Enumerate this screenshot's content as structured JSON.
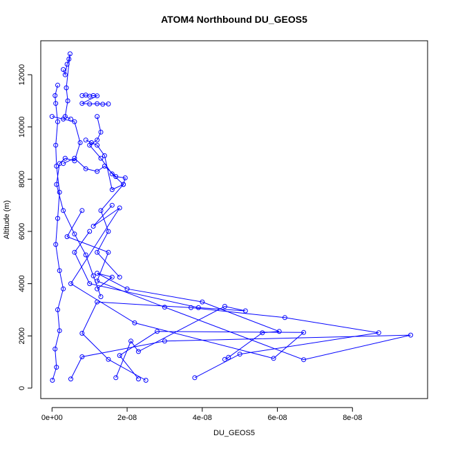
{
  "chart_data": {
    "type": "line",
    "title": "ATOM4 Northbound DU_GEOS5",
    "xlabel": "DU_GEOS5",
    "ylabel": "Altitude (m)",
    "xlim": [
      -3e-09,
      1e-07
    ],
    "ylim": [
      -400,
      13300
    ],
    "x_ticks": [
      0,
      2e-08,
      4e-08,
      6e-08,
      8e-08
    ],
    "x_tick_labels": [
      "0e+00",
      "2e-08",
      "4e-08",
      "6e-08",
      "8e-08"
    ],
    "y_ticks": [
      0,
      2000,
      4000,
      6000,
      8000,
      10000,
      12000
    ],
    "y_tick_labels": [
      "0",
      "2000",
      "4000",
      "6000",
      "8000",
      "10000",
      "12000"
    ],
    "grid": false,
    "marker": "open-circle",
    "color": "#0000ff",
    "series": [
      {
        "points": [
          [
            1e-10,
            300
          ],
          [
            1.2e-09,
            800
          ],
          [
            8e-10,
            1500
          ],
          [
            2e-09,
            2200
          ],
          [
            1.5e-09,
            3000
          ],
          [
            3e-09,
            3800
          ],
          [
            2e-09,
            4500
          ],
          [
            1e-09,
            5500
          ],
          [
            1.5e-09,
            6500
          ],
          [
            2e-09,
            7500
          ],
          [
            1.2e-09,
            8500
          ],
          [
            1e-09,
            9300
          ],
          [
            1.5e-09,
            10200
          ],
          [
            1e-09,
            10900
          ],
          [
            8e-10,
            11200
          ],
          [
            1.5e-09,
            11600
          ]
        ]
      },
      {
        "points": [
          [
            5e-09,
            350
          ],
          [
            8e-09,
            1200
          ],
          [
            3e-08,
            1800
          ],
          [
            9.55e-08,
            2030
          ],
          [
            6.7e-08,
            1090
          ],
          [
            3e-08,
            3100
          ],
          [
            1.2e-08,
            4100
          ],
          [
            1.5e-08,
            5200
          ],
          [
            4e-09,
            5800
          ],
          [
            8e-09,
            6800
          ]
        ]
      },
      {
        "points": [
          [
            3.8e-08,
            400
          ],
          [
            5e-08,
            1300
          ],
          [
            8.7e-08,
            2120
          ],
          [
            6.2e-08,
            2700
          ],
          [
            3.7e-08,
            3080
          ],
          [
            1.2e-08,
            3300
          ],
          [
            8e-09,
            2100
          ],
          [
            1.5e-08,
            1100
          ],
          [
            2.5e-08,
            300
          ]
        ]
      },
      {
        "points": [
          [
            2.3e-08,
            350
          ],
          [
            1.8e-08,
            1250
          ],
          [
            2.8e-08,
            2170
          ],
          [
            6.7e-08,
            2130
          ],
          [
            5.9e-08,
            1140
          ],
          [
            2.2e-08,
            2500
          ],
          [
            5e-09,
            4000
          ],
          [
            1.8e-08,
            6900
          ],
          [
            1.1e-08,
            6200
          ],
          [
            1.6e-08,
            7000
          ]
        ]
      },
      {
        "points": [
          [
            1.7e-08,
            400
          ],
          [
            2.1e-08,
            1800
          ],
          [
            2.3e-08,
            1400
          ],
          [
            4.6e-08,
            3130
          ],
          [
            5.15e-08,
            2960
          ],
          [
            3.9e-08,
            3080
          ],
          [
            1e-08,
            4000
          ],
          [
            6e-09,
            5200
          ],
          [
            1e-08,
            6000
          ]
        ]
      },
      {
        "points": [
          [
            4.6e-08,
            1100
          ],
          [
            4.7e-08,
            1180
          ],
          [
            5.6e-08,
            2120
          ],
          [
            6.05e-08,
            2170
          ],
          [
            4e-08,
            3300
          ],
          [
            2e-08,
            3800
          ],
          [
            1.2e-08,
            4400
          ],
          [
            1.6e-08,
            4250
          ],
          [
            1.2e-08,
            3800
          ]
        ]
      },
      {
        "points": [
          [
            1.8e-08,
            4250
          ],
          [
            1.2e-08,
            5200
          ],
          [
            1.5e-08,
            6000
          ],
          [
            1.3e-08,
            6800
          ],
          [
            1.9e-08,
            7800
          ],
          [
            1.6e-08,
            8200
          ],
          [
            1.3e-08,
            8800
          ],
          [
            1e-08,
            9300
          ],
          [
            1.2e-08,
            9500
          ],
          [
            1.3e-08,
            9800
          ],
          [
            1.2e-08,
            10400
          ]
        ]
      },
      {
        "points": [
          [
            3e-09,
            12200
          ],
          [
            3.5e-09,
            12000
          ],
          [
            4e-09,
            12400
          ],
          [
            4.5e-09,
            12600
          ],
          [
            4.8e-09,
            12800
          ],
          [
            3.8e-09,
            11500
          ],
          [
            4.2e-09,
            11000
          ],
          [
            3.5e-09,
            10400
          ],
          [
            5e-09,
            10300
          ]
        ]
      },
      {
        "points": [
          [
            8e-09,
            11200
          ],
          [
            9e-09,
            11220
          ],
          [
            1e-08,
            11180
          ],
          [
            1.1e-08,
            11200
          ],
          [
            1.2e-08,
            11190
          ],
          [
            8e-09,
            10900
          ],
          [
            1e-08,
            10880
          ],
          [
            1.2e-08,
            10890
          ],
          [
            1.35e-08,
            10870
          ],
          [
            1.5e-08,
            10880
          ]
        ]
      },
      {
        "points": [
          [
            3e-09,
            8600
          ],
          [
            6e-09,
            8800
          ],
          [
            9e-09,
            8400
          ],
          [
            1.2e-08,
            8300
          ],
          [
            1.4e-08,
            8500
          ],
          [
            1.7e-08,
            8100
          ],
          [
            1.95e-08,
            8050
          ],
          [
            1.9e-08,
            7800
          ],
          [
            1.6e-08,
            7600
          ],
          [
            1.4e-08,
            8900
          ],
          [
            1.2e-08,
            9300
          ],
          [
            1.05e-08,
            9400
          ],
          [
            9e-09,
            9500
          ]
        ]
      },
      {
        "points": [
          [
            0,
            10400
          ],
          [
            3e-09,
            10300
          ],
          [
            6e-09,
            10200
          ],
          [
            7.5e-09,
            9400
          ],
          [
            6e-09,
            8700
          ],
          [
            3.5e-09,
            8800
          ],
          [
            2e-09,
            8600
          ],
          [
            1.2e-09,
            7800
          ],
          [
            3e-09,
            6800
          ],
          [
            6e-09,
            5900
          ],
          [
            9e-09,
            5100
          ],
          [
            1.1e-08,
            4300
          ],
          [
            1.3e-08,
            3500
          ]
        ]
      }
    ]
  }
}
